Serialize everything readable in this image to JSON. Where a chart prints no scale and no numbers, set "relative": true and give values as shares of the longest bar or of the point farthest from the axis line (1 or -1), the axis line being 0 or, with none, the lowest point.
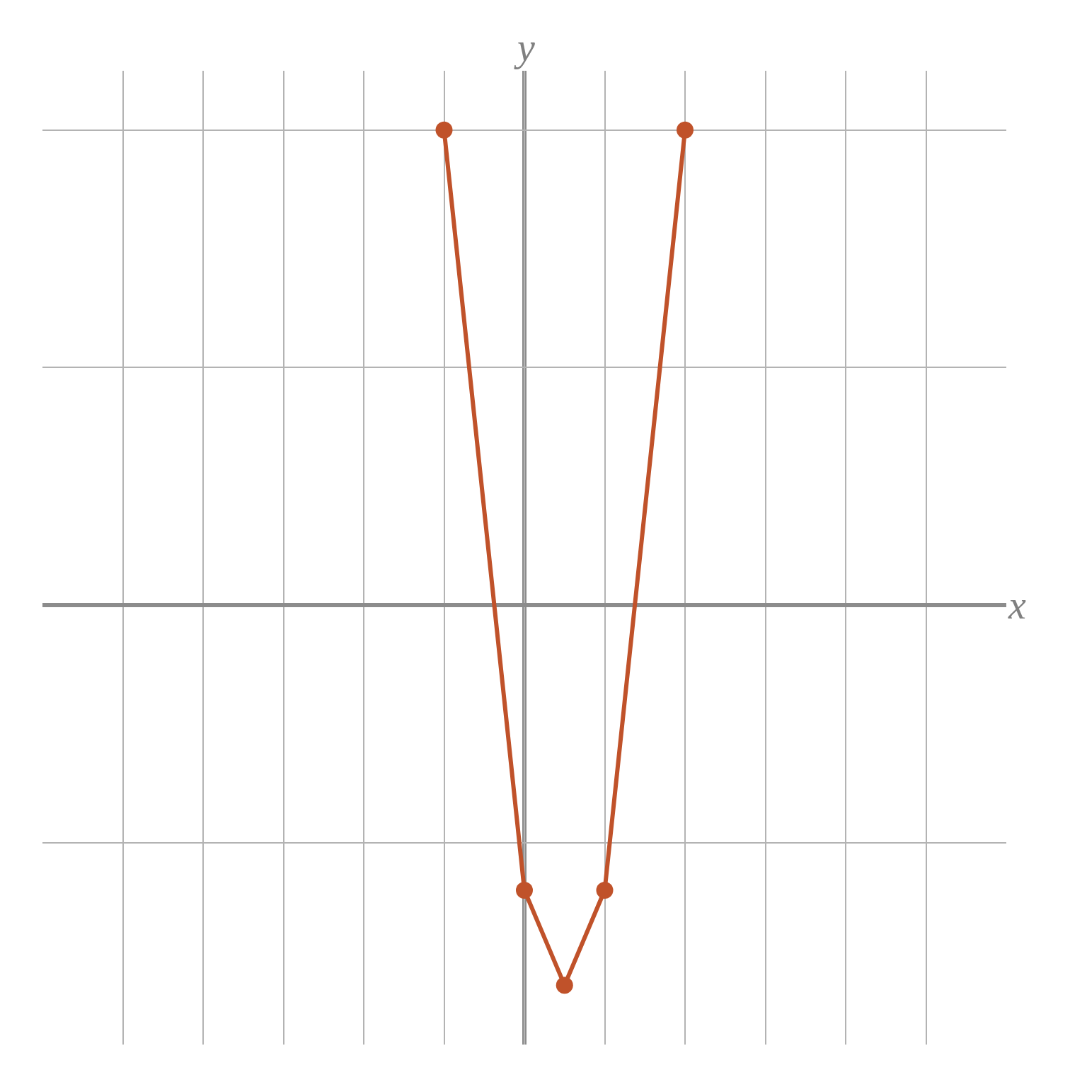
{
  "chart_data": {
    "type": "line",
    "relative": true,
    "xlabel": "x",
    "ylabel": "y",
    "grid": true,
    "marker": "circle",
    "categories": [
      null,
      null,
      null,
      null,
      null,
      null,
      null,
      null,
      null,
      null,
      null,
      null,
      null,
      null,
      null,
      null,
      null,
      null,
      null,
      null,
      null,
      null,
      null,
      null,
      null
    ],
    "series": [
      {
        "color": "#c0522a",
        "values": [
          null,
          null,
          null,
          null,
          null,
          null,
          null,
          null,
          null,
          null,
          1,
          null,
          -0.6,
          -0.8,
          -0.6,
          null,
          1,
          null,
          null,
          null,
          null,
          null,
          null,
          null,
          null
        ]
      }
    ]
  }
}
